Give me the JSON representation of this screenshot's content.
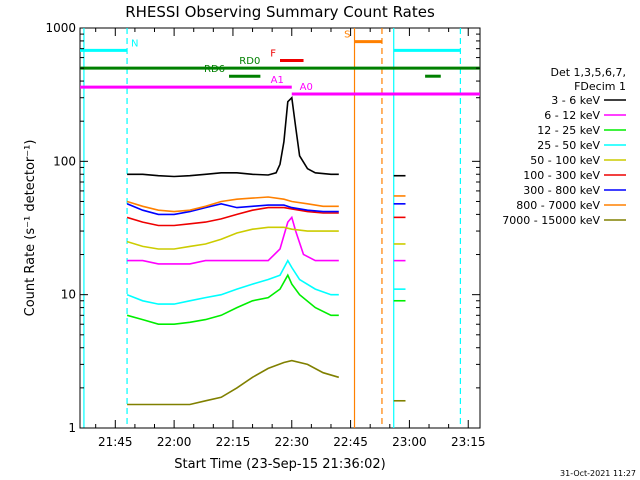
{
  "chart_data": {
    "type": "line",
    "title": "RHESSI Observing Summary Count Rates",
    "xlabel": "Start Time (23-Sep-15 21:36:02)",
    "ylabel": "Count Rate (s⁻¹ detector⁻¹)",
    "y_scale": "log",
    "ylim": [
      1,
      1000
    ],
    "xlim": [
      "21:36",
      "23:18"
    ],
    "x_ticks": [
      "21:45",
      "22:00",
      "22:15",
      "22:30",
      "22:45",
      "23:00",
      "23:15"
    ],
    "y_ticks": [
      "1",
      "10",
      "100",
      "1000"
    ],
    "grid": false,
    "legend_position": "right",
    "legend_header": [
      "Det 1,3,5,6,7,",
      "FDecim 1"
    ],
    "timestamp": "31-Oct-2021 11:27",
    "series": [
      {
        "name": "3 - 6 keV",
        "color": "#000000",
        "points": [
          [
            "21:48",
            80
          ],
          [
            "21:52",
            80
          ],
          [
            "21:56",
            78
          ],
          [
            "22:00",
            77
          ],
          [
            "22:04",
            78
          ],
          [
            "22:08",
            80
          ],
          [
            "22:12",
            82
          ],
          [
            "22:16",
            82
          ],
          [
            "22:20",
            80
          ],
          [
            "22:24",
            79
          ],
          [
            "22:26",
            82
          ],
          [
            "22:27",
            95
          ],
          [
            "22:28",
            140
          ],
          [
            "22:29",
            280
          ],
          [
            "22:30",
            300
          ],
          [
            "22:31",
            180
          ],
          [
            "22:32",
            110
          ],
          [
            "22:34",
            88
          ],
          [
            "22:36",
            82
          ],
          [
            "22:40",
            80
          ],
          [
            "22:42",
            80
          ]
        ]
      },
      {
        "name": "6 - 12 keV",
        "color": "#ff00ff",
        "points": [
          [
            "21:48",
            18
          ],
          [
            "21:52",
            18
          ],
          [
            "21:56",
            17
          ],
          [
            "22:00",
            17
          ],
          [
            "22:04",
            17
          ],
          [
            "22:08",
            18
          ],
          [
            "22:12",
            18
          ],
          [
            "22:16",
            18
          ],
          [
            "22:20",
            18
          ],
          [
            "22:24",
            18
          ],
          [
            "22:27",
            22
          ],
          [
            "22:29",
            35
          ],
          [
            "22:30",
            38
          ],
          [
            "22:31",
            30
          ],
          [
            "22:33",
            20
          ],
          [
            "22:36",
            18
          ],
          [
            "22:42",
            18
          ]
        ]
      },
      {
        "name": "12 - 25 keV",
        "color": "#00ee00",
        "points": [
          [
            "21:48",
            7
          ],
          [
            "21:52",
            6.5
          ],
          [
            "21:56",
            6
          ],
          [
            "22:00",
            6
          ],
          [
            "22:04",
            6.2
          ],
          [
            "22:08",
            6.5
          ],
          [
            "22:12",
            7
          ],
          [
            "22:16",
            8
          ],
          [
            "22:20",
            9
          ],
          [
            "22:24",
            9.5
          ],
          [
            "22:27",
            11
          ],
          [
            "22:29",
            14
          ],
          [
            "22:30",
            12
          ],
          [
            "22:32",
            10
          ],
          [
            "22:36",
            8
          ],
          [
            "22:40",
            7
          ],
          [
            "22:42",
            7
          ]
        ]
      },
      {
        "name": "25 - 50 keV",
        "color": "#00ffff",
        "points": [
          [
            "21:48",
            10
          ],
          [
            "21:52",
            9
          ],
          [
            "21:56",
            8.5
          ],
          [
            "22:00",
            8.5
          ],
          [
            "22:04",
            9
          ],
          [
            "22:08",
            9.5
          ],
          [
            "22:12",
            10
          ],
          [
            "22:16",
            11
          ],
          [
            "22:20",
            12
          ],
          [
            "22:24",
            13
          ],
          [
            "22:27",
            14
          ],
          [
            "22:29",
            18
          ],
          [
            "22:30",
            16
          ],
          [
            "22:32",
            13
          ],
          [
            "22:36",
            11
          ],
          [
            "22:40",
            10
          ],
          [
            "22:42",
            10
          ]
        ]
      },
      {
        "name": "50 - 100 keV",
        "color": "#cccc00",
        "points": [
          [
            "21:48",
            25
          ],
          [
            "21:52",
            23
          ],
          [
            "21:56",
            22
          ],
          [
            "22:00",
            22
          ],
          [
            "22:04",
            23
          ],
          [
            "22:08",
            24
          ],
          [
            "22:12",
            26
          ],
          [
            "22:16",
            29
          ],
          [
            "22:20",
            31
          ],
          [
            "22:24",
            32
          ],
          [
            "22:28",
            32
          ],
          [
            "22:30",
            31
          ],
          [
            "22:34",
            30
          ],
          [
            "22:38",
            30
          ],
          [
            "22:42",
            30
          ]
        ]
      },
      {
        "name": "100 - 300 keV",
        "color": "#ee0000",
        "points": [
          [
            "21:48",
            38
          ],
          [
            "21:52",
            35
          ],
          [
            "21:56",
            33
          ],
          [
            "22:00",
            33
          ],
          [
            "22:04",
            34
          ],
          [
            "22:08",
            35
          ],
          [
            "22:12",
            37
          ],
          [
            "22:16",
            40
          ],
          [
            "22:20",
            43
          ],
          [
            "22:24",
            45
          ],
          [
            "22:28",
            45
          ],
          [
            "22:30",
            44
          ],
          [
            "22:34",
            42
          ],
          [
            "22:38",
            41
          ],
          [
            "22:42",
            41
          ]
        ]
      },
      {
        "name": "300 - 800 keV",
        "color": "#0000ff",
        "points": [
          [
            "21:48",
            48
          ],
          [
            "21:52",
            43
          ],
          [
            "21:56",
            40
          ],
          [
            "22:00",
            40
          ],
          [
            "22:04",
            42
          ],
          [
            "22:08",
            45
          ],
          [
            "22:12",
            48
          ],
          [
            "22:16",
            45
          ],
          [
            "22:20",
            46
          ],
          [
            "22:24",
            47
          ],
          [
            "22:28",
            47
          ],
          [
            "22:30",
            45
          ],
          [
            "22:34",
            43
          ],
          [
            "22:38",
            42
          ],
          [
            "22:42",
            42
          ]
        ]
      },
      {
        "name": "800 - 7000 keV",
        "color": "#ff8000",
        "points": [
          [
            "21:48",
            50
          ],
          [
            "21:52",
            46
          ],
          [
            "21:56",
            43
          ],
          [
            "22:00",
            42
          ],
          [
            "22:04",
            43
          ],
          [
            "22:08",
            46
          ],
          [
            "22:12",
            50
          ],
          [
            "22:16",
            52
          ],
          [
            "22:20",
            53
          ],
          [
            "22:24",
            54
          ],
          [
            "22:28",
            52
          ],
          [
            "22:30",
            50
          ],
          [
            "22:34",
            48
          ],
          [
            "22:38",
            46
          ],
          [
            "22:42",
            46
          ]
        ]
      },
      {
        "name": "7000 - 15000 keV",
        "color": "#808000",
        "points": [
          [
            "21:48",
            1.5
          ],
          [
            "21:52",
            1.5
          ],
          [
            "21:56",
            1.5
          ],
          [
            "22:00",
            1.5
          ],
          [
            "22:04",
            1.5
          ],
          [
            "22:08",
            1.6
          ],
          [
            "22:12",
            1.7
          ],
          [
            "22:16",
            2
          ],
          [
            "22:20",
            2.4
          ],
          [
            "22:24",
            2.8
          ],
          [
            "22:28",
            3.1
          ],
          [
            "22:30",
            3.2
          ],
          [
            "22:34",
            3
          ],
          [
            "22:38",
            2.6
          ],
          [
            "22:42",
            2.4
          ]
        ]
      }
    ],
    "second_segment": {
      "from": "22:56",
      "to": "22:59",
      "values": {
        "3 - 6 keV": 78,
        "6 - 12 keV": 18,
        "12 - 25 keV": 9,
        "25 - 50 keV": 11,
        "50 - 100 keV": 24,
        "100 - 300 keV": 38,
        "300 - 800 keV": 48,
        "800 - 7000 keV": 55,
        "7000 - 15000 keV": 1.6
      }
    },
    "flags": [
      {
        "label": "N",
        "color": "#00ffff",
        "y": 680,
        "spans": [
          [
            "21:36",
            "21:48"
          ],
          [
            "22:56",
            "23:13"
          ]
        ],
        "label_at": "21:48",
        "label_side": "right"
      },
      {
        "label": "S",
        "color": "#ff8000",
        "y": 790,
        "spans": [
          [
            "22:46",
            "22:53"
          ]
        ],
        "label_at": "22:46",
        "label_side": "left"
      },
      {
        "label": "F",
        "color": "#ee0000",
        "y": 570,
        "spans": [
          [
            "22:27",
            "22:33"
          ]
        ],
        "label_at": "22:27",
        "label_side": "left"
      },
      {
        "label": "RD0",
        "color": "#008000",
        "y": 500,
        "spans": [
          [
            "21:36",
            "23:18"
          ]
        ],
        "label_at": "22:23",
        "label_side": "left"
      },
      {
        "label": "RD6",
        "color": "#008000",
        "y": 435,
        "spans": [
          [
            "22:14",
            "22:22"
          ],
          [
            "23:04",
            "23:08"
          ]
        ],
        "label_at": "22:14",
        "label_side": "left"
      },
      {
        "label": "A1",
        "color": "#ff00ff",
        "y": 360,
        "spans": [
          [
            "21:36",
            "22:30"
          ]
        ],
        "label_at": "22:29",
        "label_side": "left"
      },
      {
        "label": "A0",
        "color": "#ff00ff",
        "y": 320,
        "spans": [
          [
            "22:30",
            "23:18"
          ]
        ],
        "label_at": "22:31",
        "label_side": "right"
      }
    ],
    "vlines": [
      {
        "x": "21:37",
        "color": "#00ffff",
        "dashed": false
      },
      {
        "x": "21:48",
        "color": "#00ffff",
        "dashed": true
      },
      {
        "x": "22:46",
        "color": "#ff8000",
        "dashed": false
      },
      {
        "x": "22:53",
        "color": "#ff8000",
        "dashed": true
      },
      {
        "x": "22:56",
        "color": "#00ffff",
        "dashed": false
      },
      {
        "x": "23:13",
        "color": "#00ffff",
        "dashed": true
      }
    ]
  }
}
